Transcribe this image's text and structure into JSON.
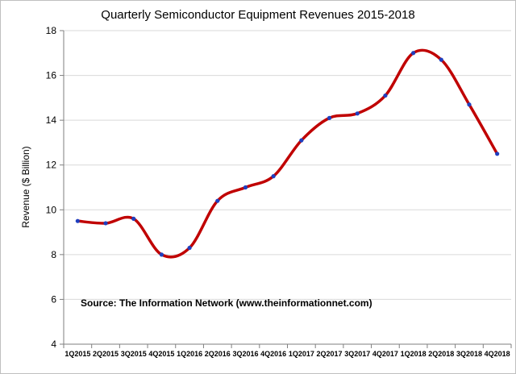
{
  "chart_data": {
    "type": "line",
    "title": "Quarterly Semiconductor Equipment Revenues 2015-2018",
    "xlabel": "",
    "ylabel": "Revenue ($ Billion)",
    "ylim": [
      4,
      18
    ],
    "yticks": [
      4,
      6,
      8,
      10,
      12,
      14,
      16,
      18
    ],
    "grid": "horizontal",
    "legend": "none",
    "annotation": "Source: The Information Network (www.theinformationnet.com)",
    "categories": [
      "1Q2015",
      "2Q2015",
      "3Q2015",
      "4Q2015",
      "1Q2016",
      "2Q2016",
      "3Q2016",
      "4Q2016",
      "1Q2017",
      "2Q2017",
      "3Q2017",
      "4Q2017",
      "1Q2018",
      "2Q2018",
      "3Q2018",
      "4Q2018"
    ],
    "series": [
      {
        "values": [
          9.5,
          9.4,
          9.6,
          8.0,
          8.3,
          10.4,
          11.0,
          11.5,
          13.1,
          14.1,
          14.3,
          15.1,
          17.0,
          16.7,
          14.7,
          12.5
        ],
        "line_color": "#c00000",
        "marker_color": "#1f3fbf"
      }
    ]
  }
}
